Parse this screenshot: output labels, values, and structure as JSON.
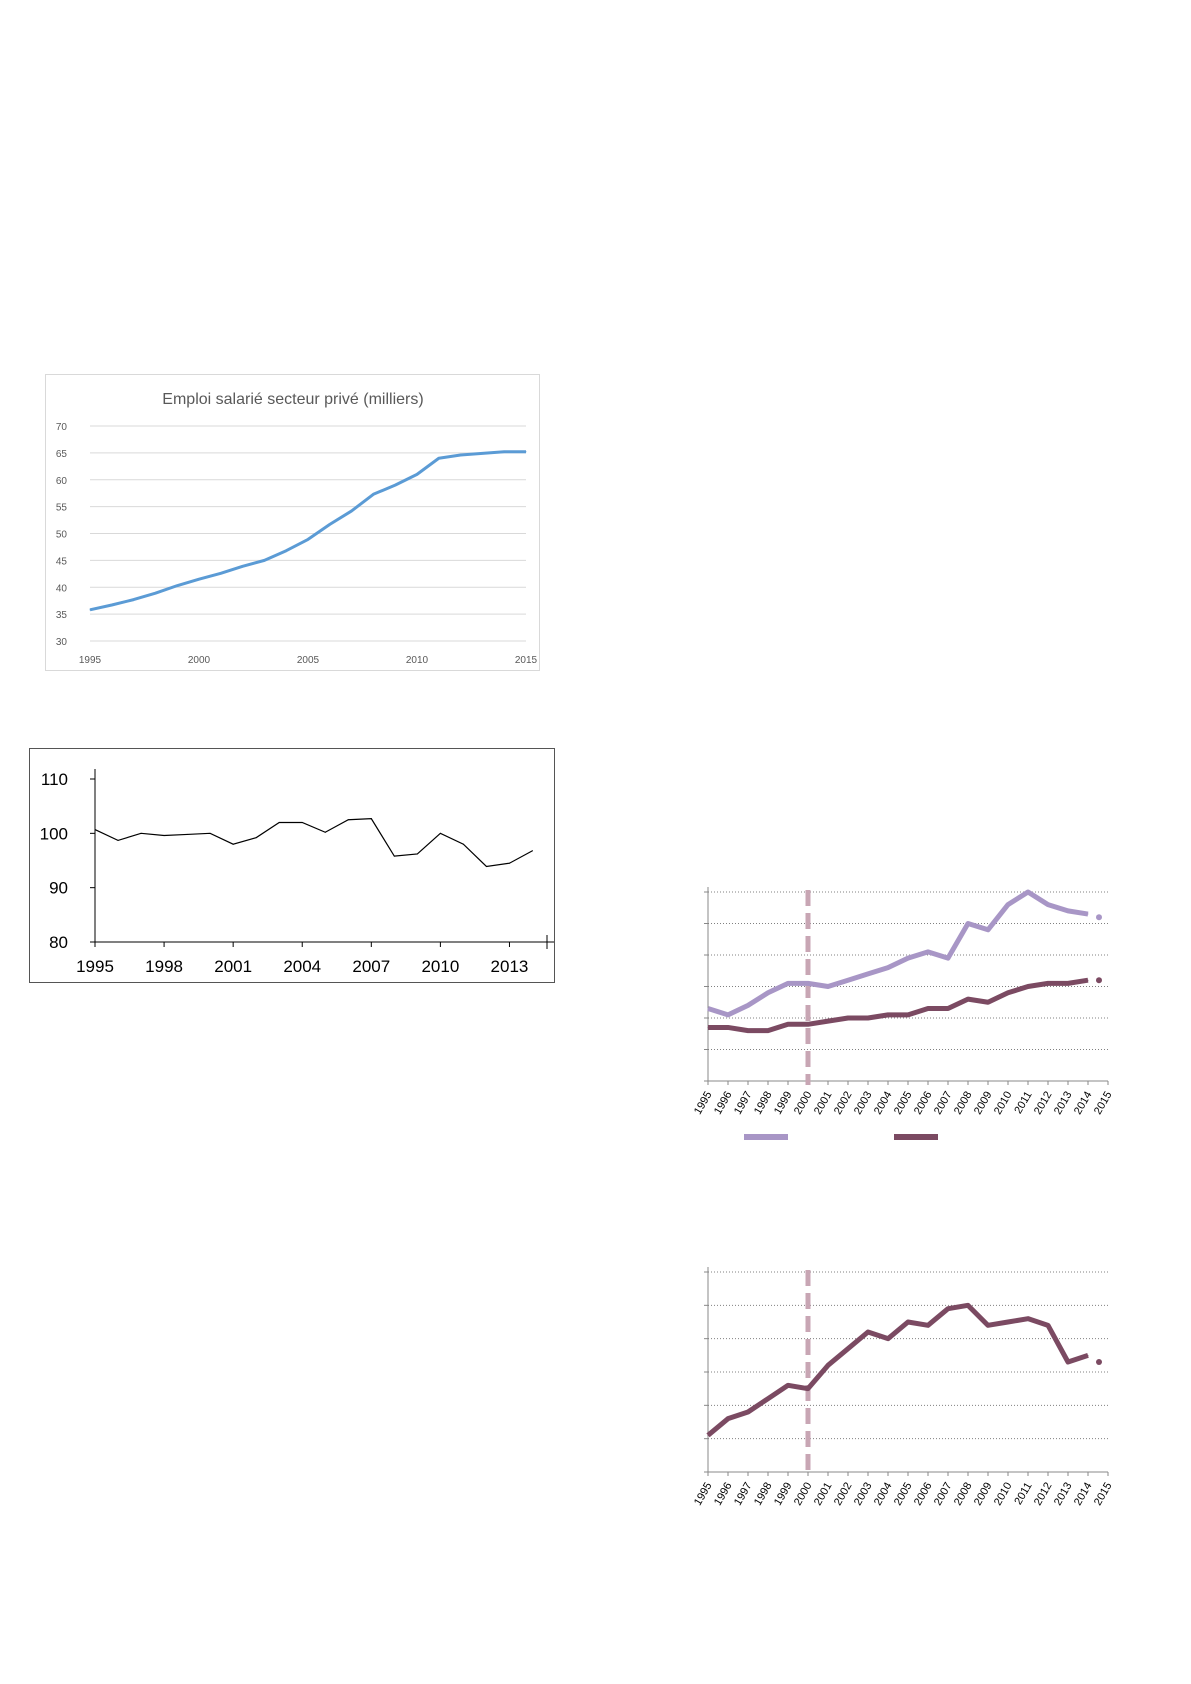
{
  "colors": {
    "chart1_line": "#5b9bd5",
    "chart1_grid": "#d9d9d9",
    "chart2_line": "#000000",
    "light_purple": "#a896c6",
    "dark_plum": "#7b4a62",
    "dashed_marker": "#c8a6b4",
    "grid_dotted": "#808080"
  },
  "chart_data": [
    {
      "type": "line",
      "title": "Emploi salarié secteur privé (milliers)",
      "xlim": [
        1995,
        2015
      ],
      "ylim": [
        30,
        70
      ],
      "x_ticks": [
        1995,
        2000,
        2005,
        2010,
        2015
      ],
      "y_ticks": [
        30,
        35,
        40,
        45,
        50,
        55,
        60,
        65,
        70
      ],
      "grid": true,
      "series": [
        {
          "x": [
            1995,
            1996,
            1997,
            1998,
            1999,
            2000,
            2001,
            2002,
            2003,
            2004,
            2005,
            2006,
            2007,
            2008,
            2009,
            2010,
            2011,
            2012,
            2013,
            2014,
            2015
          ],
          "values": [
            35.8,
            36.7,
            37.7,
            38.9,
            40.3,
            41.5,
            42.6,
            43.9,
            45.0,
            46.8,
            48.9,
            51.7,
            54.2,
            57.3,
            59.0,
            61.0,
            64.0,
            64.6,
            64.9,
            65.2,
            65.2
          ]
        }
      ]
    },
    {
      "type": "line",
      "xlim": [
        1995,
        2014.5
      ],
      "ylim": [
        80,
        110
      ],
      "x_ticks": [
        1995,
        1998,
        2001,
        2004,
        2007,
        2010,
        2013
      ],
      "y_ticks": [
        80,
        90,
        100,
        110
      ],
      "grid": false,
      "series": [
        {
          "x": [
            1995,
            1996,
            1997,
            1998,
            1999,
            2000,
            2001,
            2002,
            2003,
            2004,
            2005,
            2006,
            2007,
            2008,
            2009,
            2010,
            2011,
            2012,
            2013,
            2014
          ],
          "values": [
            100.7,
            98.7,
            100.0,
            99.6,
            99.8,
            100.0,
            98.0,
            99.2,
            102.0,
            102.0,
            100.2,
            102.5,
            102.7,
            95.8,
            96.2,
            100.0,
            98.0,
            93.9,
            94.5,
            96.8
          ]
        }
      ]
    },
    {
      "type": "line",
      "x_categories": [
        "1995",
        "1996",
        "1997",
        "1998",
        "1999",
        "2000",
        "2001",
        "2002",
        "2003",
        "2004",
        "2005",
        "2006",
        "2007",
        "2008",
        "2009",
        "2010",
        "2011",
        "2012",
        "2013",
        "2014",
        "2015"
      ],
      "ylim": [
        0,
        6
      ],
      "grid": true,
      "marker_year": 2000,
      "legend": "bottom",
      "series": [
        {
          "values": [
            2.3,
            2.1,
            2.4,
            2.8,
            3.1,
            3.1,
            3.0,
            3.2,
            3.4,
            3.6,
            3.9,
            4.1,
            3.9,
            5.0,
            4.8,
            5.6,
            6.0,
            5.6,
            5.4,
            5.3
          ],
          "end_dot": 5.2
        },
        {
          "values": [
            1.7,
            1.7,
            1.6,
            1.6,
            1.8,
            1.8,
            1.9,
            2.0,
            2.0,
            2.1,
            2.1,
            2.3,
            2.3,
            2.6,
            2.5,
            2.8,
            3.0,
            3.1,
            3.1,
            3.2
          ],
          "end_dot": 3.2
        }
      ]
    },
    {
      "type": "line",
      "x_categories": [
        "1995",
        "1996",
        "1997",
        "1998",
        "1999",
        "2000",
        "2001",
        "2002",
        "2003",
        "2004",
        "2005",
        "2006",
        "2007",
        "2008",
        "2009",
        "2010",
        "2011",
        "2012",
        "2013",
        "2014",
        "2015"
      ],
      "ylim": [
        0,
        6
      ],
      "grid": true,
      "marker_year": 2000,
      "series": [
        {
          "values": [
            1.1,
            1.6,
            1.8,
            2.2,
            2.6,
            2.5,
            3.2,
            3.7,
            4.2,
            4.0,
            4.5,
            4.4,
            4.9,
            5.0,
            4.4,
            4.5,
            4.6,
            4.4,
            3.3,
            3.5
          ],
          "end_dot": 3.3
        }
      ]
    }
  ]
}
